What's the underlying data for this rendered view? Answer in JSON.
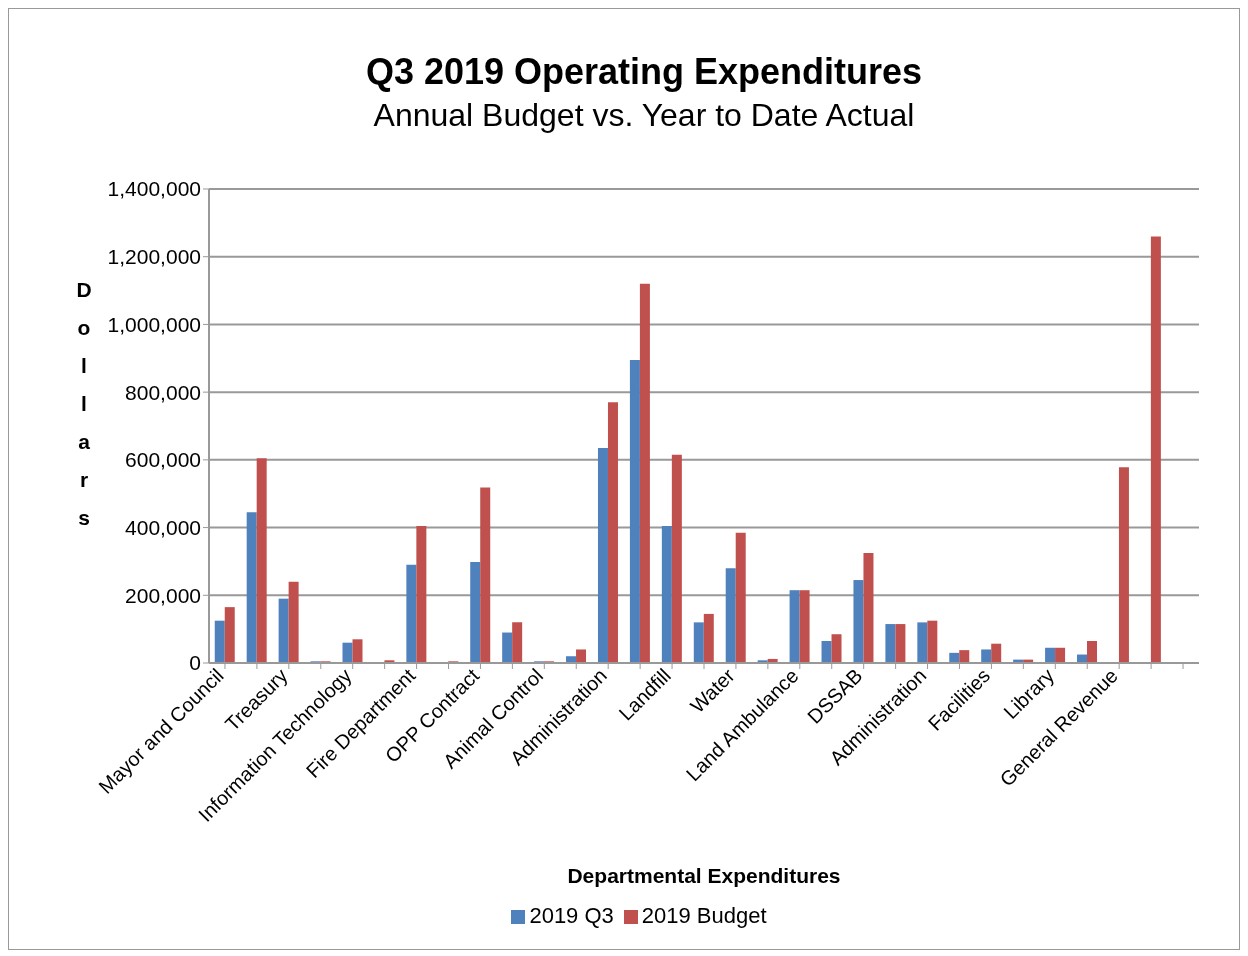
{
  "chart_data": {
    "type": "bar",
    "title": "Q3 2019 Operating Expenditures",
    "subtitle": "Annual Budget vs. Year to Date Actual",
    "xlabel": "Departmental Expenditures",
    "ylabel": "Dollars",
    "categories": [
      "Mayor and Council",
      null,
      "Treasury",
      null,
      "Information Technology",
      null,
      "Fire Department",
      null,
      "OPP Contract",
      null,
      "Animal Control",
      null,
      "Administration",
      null,
      "Landfill",
      null,
      "Water",
      null,
      "Land Ambulance",
      null,
      "DSSAB",
      null,
      "Administration",
      null,
      "Facilities",
      null,
      "Library",
      null,
      "General Revenue",
      null,
      null
    ],
    "series": [
      {
        "name": "2019 Q3",
        "color": "#4f81bd",
        "values": [
          125000,
          445000,
          190000,
          5000,
          60000,
          3000,
          290000,
          2000,
          298000,
          90000,
          5000,
          20000,
          635000,
          895000,
          405000,
          120000,
          280000,
          8000,
          215000,
          65000,
          245000,
          115000,
          120000,
          30000,
          40000,
          10000,
          45000,
          25000,
          0,
          0,
          null
        ]
      },
      {
        "name": "2019 Budget",
        "color": "#c0504d",
        "values": [
          165000,
          605000,
          240000,
          5000,
          70000,
          8000,
          405000,
          5000,
          518000,
          120000,
          5000,
          40000,
          770000,
          1120000,
          615000,
          145000,
          385000,
          12000,
          215000,
          85000,
          325000,
          115000,
          125000,
          38000,
          57000,
          10000,
          45000,
          65000,
          578000,
          1260000,
          null
        ]
      }
    ],
    "ylim": [
      0,
      1400000
    ],
    "yticks": [
      0,
      {
        "value": 200000,
        "label": "200,000"
      },
      {
        "value": 400000,
        "label": "400,000"
      },
      {
        "value": 600000,
        "label": "600,000"
      },
      {
        "value": 800000,
        "label": "800,000"
      },
      {
        "value": 1000000,
        "label": "1,000,000"
      },
      {
        "value": 1200000,
        "label": "1,200,000"
      },
      {
        "value": 1400000,
        "label": "1,400,000"
      }
    ],
    "grid": "y",
    "legend": "bottom"
  }
}
